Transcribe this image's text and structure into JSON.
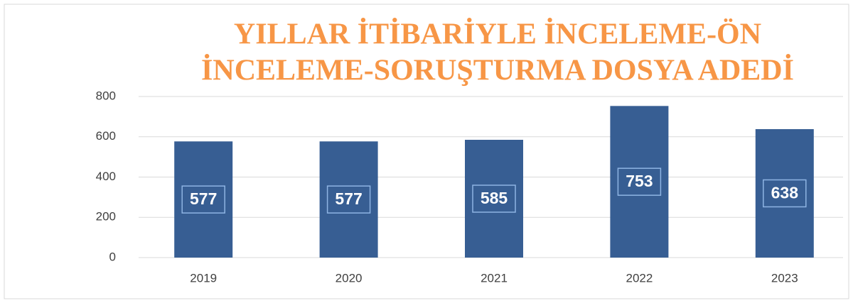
{
  "chart_data": {
    "type": "bar",
    "title": [
      "YILLAR İTİBARİYLE İNCELEME-ÖN",
      "İNCELEME-SORUŞTURMA DOSYA ADEDİ"
    ],
    "categories": [
      "2019",
      "2020",
      "2021",
      "2022",
      "2023"
    ],
    "values": [
      577,
      577,
      585,
      753,
      638
    ],
    "color": "#375e93",
    "ylim": [
      0,
      800
    ],
    "yticks": [
      0,
      200,
      400,
      600,
      800
    ],
    "grid": true
  }
}
